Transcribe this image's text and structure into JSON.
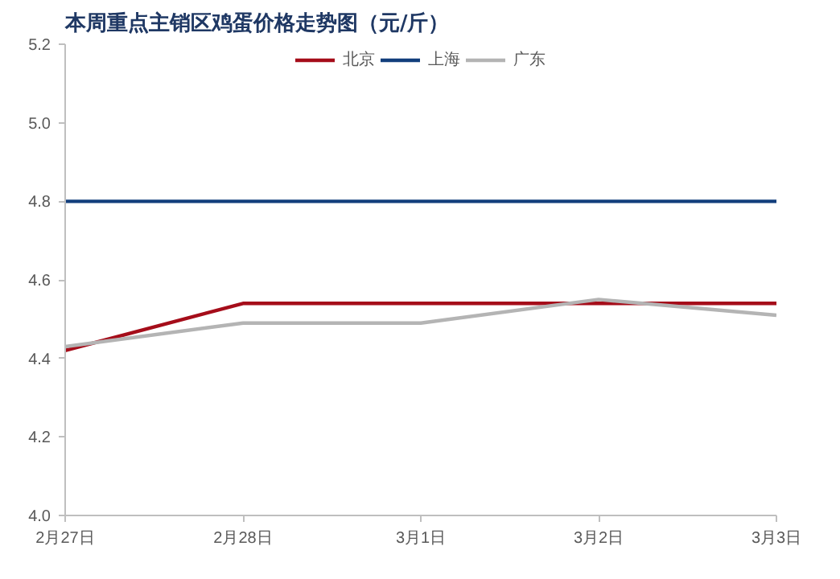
{
  "chart_data": {
    "type": "line",
    "title": "本周重点主销区鸡蛋价格走势图（元/斤）",
    "categories": [
      "2月27日",
      "2月28日",
      "3月1日",
      "3月2日",
      "3月3日"
    ],
    "series": [
      {
        "name": "北京",
        "color": "#a50d1a",
        "values": [
          4.42,
          4.54,
          4.54,
          4.54,
          4.54
        ]
      },
      {
        "name": "上海",
        "color": "#123e7c",
        "values": [
          4.8,
          4.8,
          4.8,
          4.8,
          4.8
        ]
      },
      {
        "name": "广东",
        "color": "#b4b4b4",
        "values": [
          4.43,
          4.49,
          4.49,
          4.55,
          4.51
        ]
      }
    ],
    "ylim": [
      4.0,
      5.2
    ],
    "yticks": [
      {
        "value": 4,
        "label": "4.0"
      },
      4.2,
      4.4,
      4.6,
      4.8,
      {
        "value": 5,
        "label": "5.0"
      },
      5.2
    ],
    "grid": false,
    "legend": "top",
    "marker": "none",
    "line_style": "solid"
  }
}
